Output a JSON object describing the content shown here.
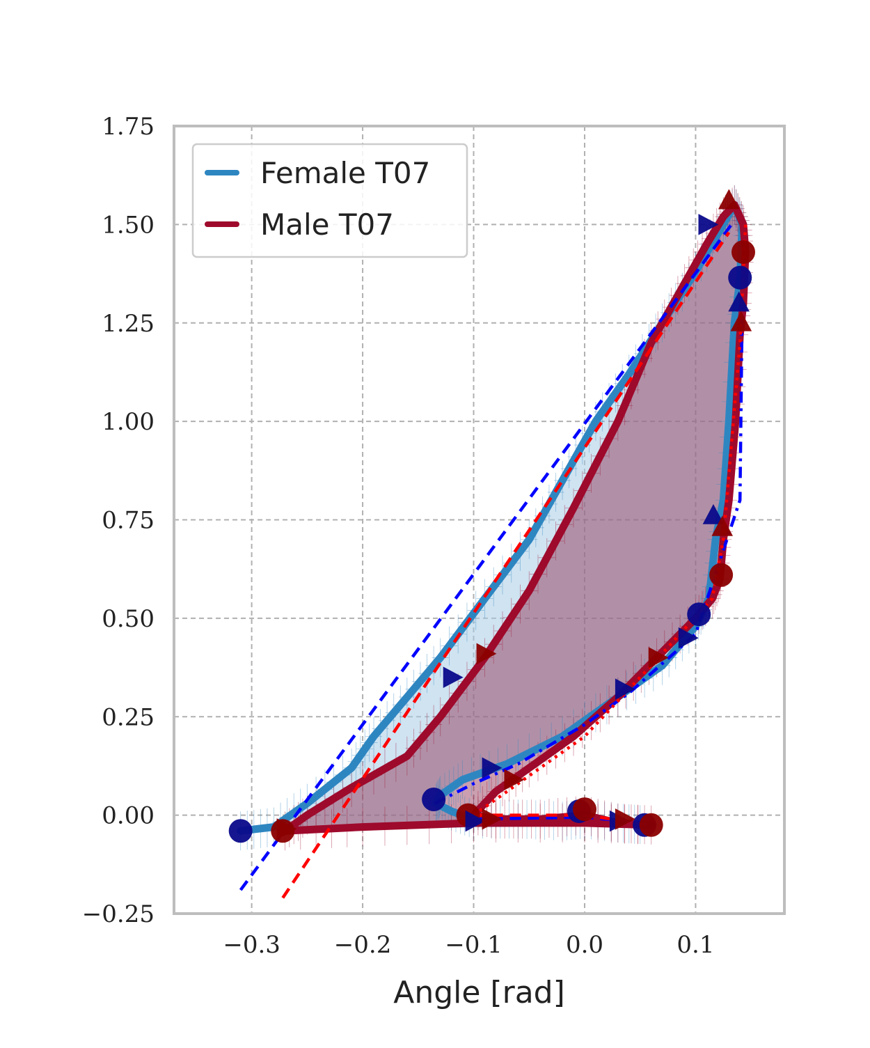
{
  "colors": {
    "female": "#2e86c1",
    "female_fill": "#a8cce6",
    "male": "#9e0a2c",
    "male_fill": "#8c2a4e",
    "fit_blue": "#0000ff",
    "fit_red": "#ff0000",
    "marker_blue": "#0a0a8a",
    "marker_red": "#8b0000",
    "frame": "#bdbdbd",
    "grid": "#b0b0b0"
  },
  "chart_data": {
    "type": "line",
    "title": "",
    "xlabel": "Angle [rad]",
    "ylabel": "",
    "xlim": [
      -0.37,
      0.18
    ],
    "ylim": [
      -0.25,
      1.75
    ],
    "grid": true,
    "legend_position": "top-left",
    "x_ticks": [
      {
        "value": -0.3,
        "label": "−0.3"
      },
      {
        "value": -0.2,
        "label": "−0.2"
      },
      {
        "value": -0.1,
        "label": "−0.1"
      },
      {
        "value": 0.0,
        "label": "0.0"
      },
      {
        "value": 0.1,
        "label": "0.1"
      }
    ],
    "y_ticks": [
      {
        "value": -0.25,
        "label": "−0.25"
      },
      {
        "value": 0.0,
        "label": "0.00"
      },
      {
        "value": 0.25,
        "label": "0.25"
      },
      {
        "value": 0.5,
        "label": "0.50"
      },
      {
        "value": 0.75,
        "label": "0.75"
      },
      {
        "value": 1.0,
        "label": "1.00"
      },
      {
        "value": 1.25,
        "label": "1.25"
      },
      {
        "value": 1.5,
        "label": "1.50"
      },
      {
        "value": 1.75,
        "label": "1.75"
      }
    ],
    "series": [
      {
        "name": "Female T07",
        "color_key": "female",
        "points": [
          [
            -0.31,
            -0.04
          ],
          [
            -0.28,
            -0.03
          ],
          [
            -0.25,
            0.03
          ],
          [
            -0.21,
            0.12
          ],
          [
            -0.19,
            0.2
          ],
          [
            -0.16,
            0.3
          ],
          [
            -0.13,
            0.4
          ],
          [
            -0.09,
            0.55
          ],
          [
            -0.05,
            0.7
          ],
          [
            -0.02,
            0.85
          ],
          [
            0.01,
            1.0
          ],
          [
            0.04,
            1.12
          ],
          [
            0.07,
            1.25
          ],
          [
            0.1,
            1.38
          ],
          [
            0.125,
            1.5
          ],
          [
            0.135,
            1.55
          ],
          [
            0.142,
            1.5
          ],
          [
            0.14,
            1.36
          ],
          [
            0.135,
            1.25
          ],
          [
            0.13,
            1.0
          ],
          [
            0.125,
            0.8
          ],
          [
            0.118,
            0.7
          ],
          [
            0.112,
            0.55
          ],
          [
            0.1,
            0.48
          ],
          [
            0.07,
            0.38
          ],
          [
            0.03,
            0.3
          ],
          [
            -0.02,
            0.2
          ],
          [
            -0.07,
            0.13
          ],
          [
            -0.11,
            0.09
          ],
          [
            -0.13,
            0.05
          ],
          [
            -0.134,
            0.03
          ],
          [
            -0.12,
            0.01
          ],
          [
            -0.1,
            -0.01
          ],
          [
            -0.06,
            -0.01
          ],
          [
            -0.02,
            -0.015
          ],
          [
            0.0,
            -0.01
          ],
          [
            0.03,
            -0.02
          ],
          [
            0.055,
            -0.025
          ]
        ]
      },
      {
        "name": "Male T07",
        "color_key": "male",
        "points": [
          [
            -0.27,
            -0.04
          ],
          [
            -0.25,
            0.0
          ],
          [
            -0.21,
            0.07
          ],
          [
            -0.16,
            0.15
          ],
          [
            -0.13,
            0.25
          ],
          [
            -0.09,
            0.4
          ],
          [
            -0.05,
            0.57
          ],
          [
            -0.01,
            0.78
          ],
          [
            0.03,
            1.0
          ],
          [
            0.06,
            1.2
          ],
          [
            0.09,
            1.35
          ],
          [
            0.11,
            1.45
          ],
          [
            0.125,
            1.52
          ],
          [
            0.135,
            1.55
          ],
          [
            0.143,
            1.5
          ],
          [
            0.145,
            1.43
          ],
          [
            0.143,
            1.3
          ],
          [
            0.14,
            1.22
          ],
          [
            0.136,
            1.0
          ],
          [
            0.13,
            0.8
          ],
          [
            0.125,
            0.7
          ],
          [
            0.122,
            0.6
          ],
          [
            0.115,
            0.55
          ],
          [
            0.1,
            0.5
          ],
          [
            0.065,
            0.4
          ],
          [
            0.03,
            0.3
          ],
          [
            -0.01,
            0.2
          ],
          [
            -0.05,
            0.12
          ],
          [
            -0.08,
            0.06
          ],
          [
            -0.1,
            0.0
          ],
          [
            -0.08,
            -0.01
          ],
          [
            -0.04,
            -0.01
          ],
          [
            0.0,
            0.0
          ],
          [
            0.03,
            -0.02
          ],
          [
            0.06,
            -0.025
          ],
          [
            0.0,
            -0.02
          ],
          [
            -0.1,
            -0.02
          ],
          [
            -0.2,
            -0.03
          ],
          [
            -0.27,
            -0.04
          ]
        ]
      }
    ],
    "fit_lines": [
      {
        "color_key": "fit_blue",
        "style": "dashed",
        "points": [
          [
            -0.31,
            -0.19
          ],
          [
            0.135,
            1.51
          ]
        ]
      },
      {
        "color_key": "fit_red",
        "style": "dashed",
        "points": [
          [
            -0.272,
            -0.21
          ],
          [
            0.13,
            1.48
          ]
        ]
      },
      {
        "color_key": "fit_blue",
        "style": "dashdot",
        "points": [
          [
            -0.135,
            0.03
          ],
          [
            -0.1,
            0.08
          ],
          [
            -0.06,
            0.13
          ],
          [
            0.0,
            0.23
          ],
          [
            0.04,
            0.31
          ],
          [
            0.1,
            0.46
          ],
          [
            0.14,
            0.8
          ],
          [
            0.142,
            1.3
          ]
        ]
      },
      {
        "color_key": "fit_red",
        "style": "dotted",
        "points": [
          [
            -0.1,
            0.0
          ],
          [
            -0.06,
            0.08
          ],
          [
            0.0,
            0.2
          ],
          [
            0.06,
            0.38
          ],
          [
            0.115,
            0.55
          ],
          [
            0.125,
            0.7
          ],
          [
            0.14,
            1.2
          ],
          [
            0.145,
            1.5
          ]
        ]
      },
      {
        "color_key": "fit_blue",
        "style": "dashed",
        "points": [
          [
            -0.1,
            -0.01
          ],
          [
            0.0,
            -0.005
          ],
          [
            0.055,
            -0.02
          ]
        ]
      },
      {
        "color_key": "fit_red",
        "style": "dashed",
        "points": [
          [
            -0.1,
            0.0
          ],
          [
            0.0,
            0.0
          ],
          [
            0.06,
            -0.025
          ]
        ]
      }
    ],
    "circle_markers": [
      {
        "x": -0.31,
        "y": -0.04,
        "color_key": "marker_blue"
      },
      {
        "x": -0.272,
        "y": -0.04,
        "color_key": "marker_red"
      },
      {
        "x": 0.14,
        "y": 1.365,
        "color_key": "marker_blue"
      },
      {
        "x": 0.143,
        "y": 1.43,
        "color_key": "marker_red"
      },
      {
        "x": 0.103,
        "y": 0.51,
        "color_key": "marker_blue"
      },
      {
        "x": 0.123,
        "y": 0.61,
        "color_key": "marker_red"
      },
      {
        "x": -0.136,
        "y": 0.04,
        "color_key": "marker_blue"
      },
      {
        "x": -0.105,
        "y": 0.0,
        "color_key": "marker_red"
      },
      {
        "x": -0.005,
        "y": 0.01,
        "color_key": "marker_blue"
      },
      {
        "x": 0.0,
        "y": 0.015,
        "color_key": "marker_red"
      },
      {
        "x": 0.054,
        "y": -0.025,
        "color_key": "marker_blue"
      },
      {
        "x": 0.06,
        "y": -0.025,
        "color_key": "marker_red"
      }
    ],
    "triangle_markers": [
      {
        "x": 0.11,
        "y": 1.5,
        "dir": "right",
        "color_key": "marker_blue"
      },
      {
        "x": 0.13,
        "y": 1.56,
        "dir": "up",
        "color_key": "marker_red"
      },
      {
        "x": 0.139,
        "y": 1.3,
        "dir": "up",
        "color_key": "marker_blue"
      },
      {
        "x": 0.141,
        "y": 1.25,
        "dir": "up",
        "color_key": "marker_red"
      },
      {
        "x": 0.116,
        "y": 0.76,
        "dir": "up",
        "color_key": "marker_blue"
      },
      {
        "x": 0.124,
        "y": 0.73,
        "dir": "up",
        "color_key": "marker_red"
      },
      {
        "x": 0.092,
        "y": 0.45,
        "dir": "right",
        "color_key": "marker_blue"
      },
      {
        "x": 0.065,
        "y": 0.4,
        "dir": "right",
        "color_key": "marker_red"
      },
      {
        "x": 0.035,
        "y": 0.32,
        "dir": "right",
        "color_key": "marker_blue"
      },
      {
        "x": -0.12,
        "y": 0.35,
        "dir": "right",
        "color_key": "marker_blue"
      },
      {
        "x": -0.09,
        "y": 0.41,
        "dir": "right",
        "color_key": "marker_red"
      },
      {
        "x": -0.085,
        "y": 0.12,
        "dir": "right",
        "color_key": "marker_blue"
      },
      {
        "x": -0.065,
        "y": 0.09,
        "dir": "right",
        "color_key": "marker_red"
      },
      {
        "x": -0.1,
        "y": -0.015,
        "dir": "right",
        "color_key": "marker_blue"
      },
      {
        "x": -0.085,
        "y": -0.01,
        "dir": "right",
        "color_key": "marker_red"
      },
      {
        "x": 0.03,
        "y": -0.015,
        "dir": "right",
        "color_key": "marker_blue"
      },
      {
        "x": 0.035,
        "y": -0.01,
        "dir": "right",
        "color_key": "marker_red"
      },
      {
        "x": -0.27,
        "y": -0.035,
        "dir": "right",
        "color_key": "marker_red"
      }
    ]
  },
  "legend": {
    "entries": [
      {
        "label": "Female T07",
        "color_key": "female"
      },
      {
        "label": "Male T07",
        "color_key": "male"
      }
    ]
  }
}
